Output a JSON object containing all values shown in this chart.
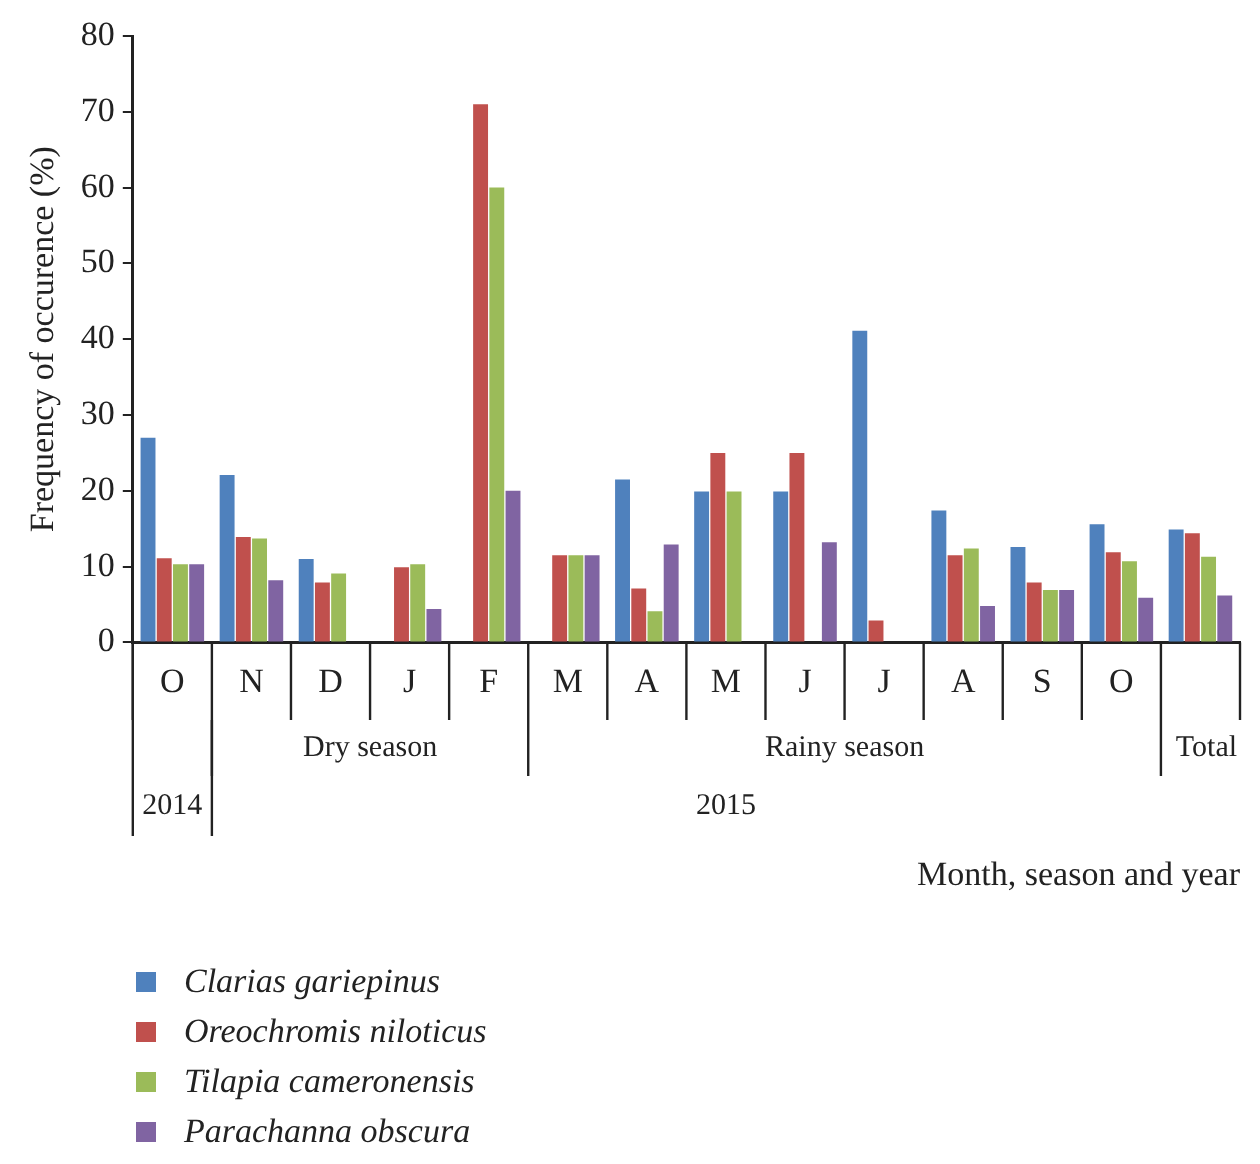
{
  "chart_data": {
    "type": "bar",
    "ylabel": "Frequency of occurence (%)",
    "xlabel": "Month, season and year",
    "categories": [
      "O",
      "N",
      "D",
      "J",
      "F",
      "M",
      "A",
      "M",
      "J",
      "J",
      "A",
      "S",
      "O",
      null
    ],
    "series": [
      {
        "name": "Clarias gariepinus",
        "color": "#4f81bd",
        "values": [
          27.0,
          22.1,
          11.0,
          0,
          0,
          0,
          21.5,
          19.9,
          19.9,
          41.1,
          17.4,
          12.6,
          15.6,
          14.9
        ]
      },
      {
        "name": "Oreochromis niloticus",
        "color": "#c0504d",
        "values": [
          11.1,
          13.9,
          7.9,
          9.9,
          71.0,
          11.5,
          7.1,
          25.0,
          25.0,
          2.9,
          11.5,
          7.9,
          11.9,
          14.4
        ]
      },
      {
        "name": "Tilapia cameronensis",
        "color": "#9bbb59",
        "values": [
          10.3,
          13.7,
          9.1,
          10.3,
          60.0,
          11.5,
          4.1,
          19.9,
          0,
          0,
          12.4,
          6.9,
          10.7,
          11.3
        ]
      },
      {
        "name": "Parachanna obscura",
        "color": "#8064a2",
        "values": [
          10.3,
          8.2,
          0,
          4.4,
          20.0,
          11.5,
          12.9,
          0,
          13.2,
          0,
          4.8,
          6.9,
          5.9,
          6.2
        ]
      }
    ],
    "ylim": [
      0,
      80
    ],
    "yticks": [
      0,
      10,
      20,
      30,
      40,
      50,
      60,
      70,
      80
    ],
    "grid": false,
    "legend": "bottom left",
    "annotations": [
      "Dry season",
      "Rainy season",
      "Total",
      "2014",
      "2015"
    ]
  }
}
